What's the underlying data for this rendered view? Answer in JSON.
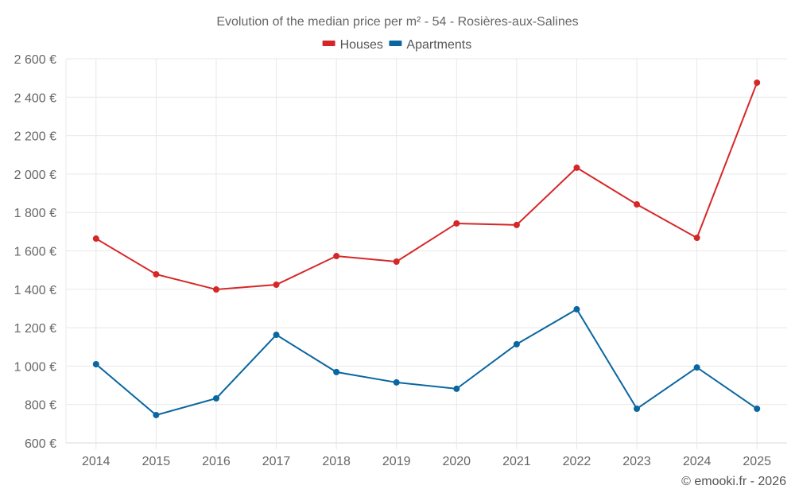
{
  "chart_data": {
    "type": "line",
    "title": "Evolution of the median price per m² - 54 - Rosières-aux-Salines",
    "xlabel": "",
    "ylabel": "",
    "categories": [
      "2014",
      "2015",
      "2016",
      "2017",
      "2018",
      "2019",
      "2020",
      "2021",
      "2022",
      "2023",
      "2024",
      "2025"
    ],
    "series": [
      {
        "name": "Houses",
        "color": "#d62728",
        "values": [
          1664,
          1478,
          1399,
          1424,
          1573,
          1544,
          1743,
          1735,
          2033,
          1842,
          1668,
          2476
        ]
      },
      {
        "name": "Apartments",
        "color": "#0a66a0",
        "values": [
          1010,
          745,
          832,
          1163,
          969,
          915,
          882,
          1114,
          1296,
          778,
          993,
          778
        ]
      }
    ],
    "ylim": [
      600,
      2600
    ],
    "yticks": [
      600,
      800,
      1000,
      1200,
      1400,
      1600,
      1800,
      2000,
      2200,
      2400,
      2600
    ],
    "ytick_labels": [
      "600 €",
      "800 €",
      "1 000 €",
      "1 200 €",
      "1 400 €",
      "1 600 €",
      "1 800 €",
      "2 000 €",
      "2 200 €",
      "2 400 €",
      "2 600 €"
    ],
    "grid": true,
    "legend_position": "top-center"
  },
  "credit": "© emooki.fr - 2026"
}
